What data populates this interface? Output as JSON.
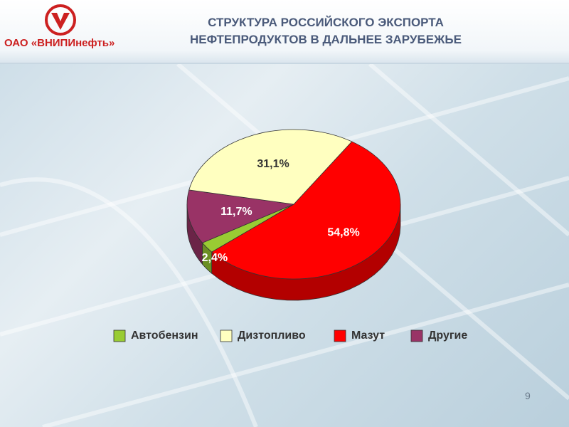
{
  "header": {
    "company": "ОАО «ВНИПИнефть»"
  },
  "page_number": "9",
  "chart_data": {
    "type": "pie",
    "title": "СТРУКТУРА РОССИЙСКОГО ЭКСПОРТА НЕФТЕПРОДУКТОВ В ДАЛЬНЕЕ ЗАРУБЕЖЬЕ",
    "categories": [
      "Автобензин",
      "Дизтопливо",
      "Мазут",
      "Другие"
    ],
    "values": [
      2.4,
      31.1,
      54.8,
      11.7
    ],
    "value_labels": [
      "2,4%",
      "31,1%",
      "54,8%",
      "11,7%"
    ],
    "colors": [
      "#99cc33",
      "#ffffc0",
      "#ff0000",
      "#993366"
    ],
    "legend": "bottom"
  }
}
